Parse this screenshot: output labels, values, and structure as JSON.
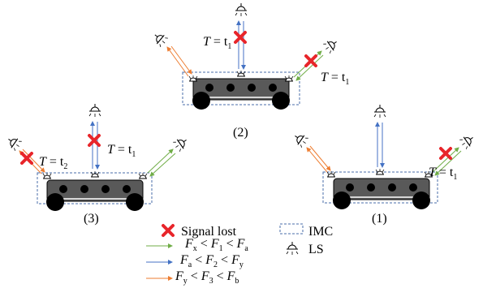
{
  "time_labels": {
    "t1": {
      "var": "T",
      "eq": " = t",
      "sub": "1"
    },
    "t2": {
      "var": "T",
      "eq": " = t",
      "sub": "2"
    }
  },
  "vehicle_labels": {
    "v1": "(1)",
    "v2": "(2)",
    "v3": "(3)"
  },
  "legend": {
    "signal_lost": "Signal lost",
    "imc": "IMC",
    "ls": "LS",
    "ranges": [
      {
        "color": "#70ad47",
        "parts": [
          "F",
          "x",
          " < ",
          "F",
          "1",
          " < ",
          "F",
          "a"
        ]
      },
      {
        "color": "#4472c4",
        "parts": [
          "F",
          "a",
          " < ",
          "F",
          "2",
          " < ",
          "F",
          "y"
        ]
      },
      {
        "color": "#ed7d31",
        "parts": [
          "F",
          "y",
          " < ",
          "F",
          "3",
          " < ",
          "F",
          "b"
        ]
      }
    ]
  },
  "colors": {
    "green": "#70ad47",
    "blue": "#4472c4",
    "orange": "#ed7d31",
    "signal_lost": "#e8252a",
    "imc_border": "#4a6ea9",
    "car_body": "#595959"
  },
  "icons": [
    "signal-lost-icon",
    "light-source-icon",
    "photodetector-icon",
    "wheel-icon"
  ]
}
